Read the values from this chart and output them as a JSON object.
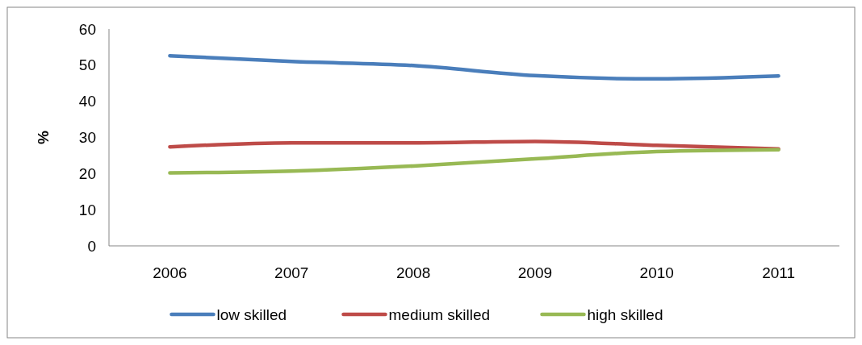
{
  "chart_data": {
    "type": "line",
    "ylabel": "%",
    "categories": [
      "2006",
      "2007",
      "2008",
      "2009",
      "2010",
      "2011"
    ],
    "series": [
      {
        "name": "low skilled",
        "color": "#4a7ebb",
        "values": [
          52.6,
          51.0,
          49.9,
          47.1,
          46.2,
          47.0
        ]
      },
      {
        "name": "medium skilled",
        "color": "#be4b48",
        "values": [
          27.4,
          28.5,
          28.5,
          28.9,
          27.8,
          26.8
        ]
      },
      {
        "name": "high skilled",
        "color": "#98b954",
        "values": [
          20.2,
          20.7,
          22.1,
          24.1,
          26.1,
          26.6
        ]
      }
    ],
    "ylim": [
      0,
      60
    ],
    "yticks": [
      0,
      10,
      20,
      30,
      40,
      50,
      60
    ],
    "grid": false,
    "legend": "bottom",
    "marker": "none",
    "line_style": "solid"
  }
}
